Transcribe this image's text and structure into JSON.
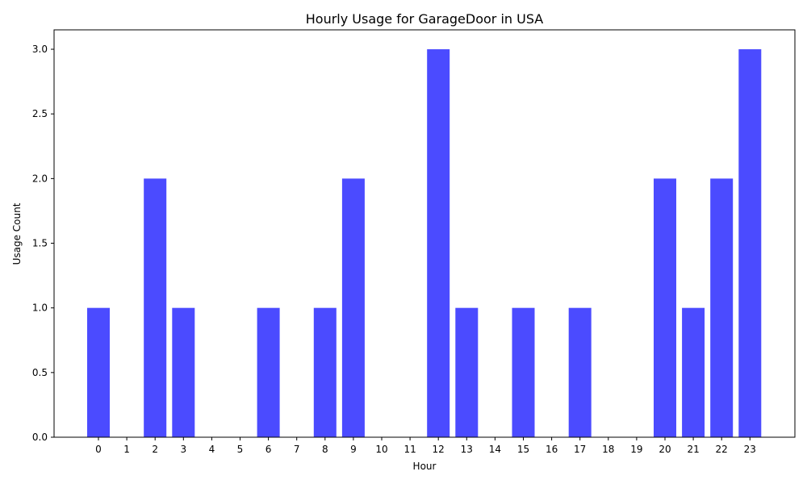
{
  "chart_data": {
    "type": "bar",
    "title": "Hourly Usage for GarageDoor in USA",
    "xlabel": "Hour",
    "ylabel": "Usage Count",
    "categories": [
      "0",
      "1",
      "2",
      "3",
      "4",
      "5",
      "6",
      "7",
      "8",
      "9",
      "10",
      "11",
      "12",
      "13",
      "14",
      "15",
      "16",
      "17",
      "18",
      "19",
      "20",
      "21",
      "22",
      "23"
    ],
    "values": [
      1,
      0,
      2,
      1,
      0,
      0,
      1,
      0,
      1,
      2,
      0,
      0,
      3,
      1,
      0,
      1,
      0,
      1,
      0,
      0,
      2,
      1,
      2,
      3
    ],
    "ylim": [
      0,
      3.15
    ],
    "yticks": [
      0.0,
      0.5,
      1.0,
      1.5,
      2.0,
      2.5,
      3.0
    ],
    "ytick_labels": [
      "0.0",
      "0.5",
      "1.0",
      "1.5",
      "2.0",
      "2.5",
      "3.0"
    ],
    "bar_color": "#4b4bff",
    "grid": false,
    "legend": "none"
  }
}
